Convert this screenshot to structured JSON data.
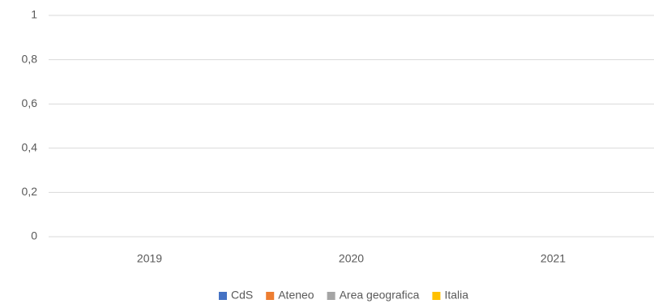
{
  "chart_data": {
    "type": "bar",
    "title": "",
    "xlabel": "",
    "ylabel": "",
    "categories": [
      "2019",
      "2020",
      "2021"
    ],
    "ylim": [
      0,
      1
    ],
    "yticks": [
      "0",
      "0,2",
      "0,4",
      "0,6",
      "0,8",
      "1"
    ],
    "grid": true,
    "legend_position": "bottom",
    "series": [
      {
        "name": "CdS",
        "color": "#4472C4",
        "values": [
          0,
          0,
          0
        ]
      },
      {
        "name": "Ateneo",
        "color": "#ED7D31",
        "values": [
          0,
          0,
          0
        ]
      },
      {
        "name": "Area geografica",
        "color": "#A5A5A5",
        "values": [
          0,
          0,
          0
        ]
      },
      {
        "name": "Italia",
        "color": "#FFC000",
        "values": [
          0,
          0,
          0
        ]
      }
    ]
  }
}
